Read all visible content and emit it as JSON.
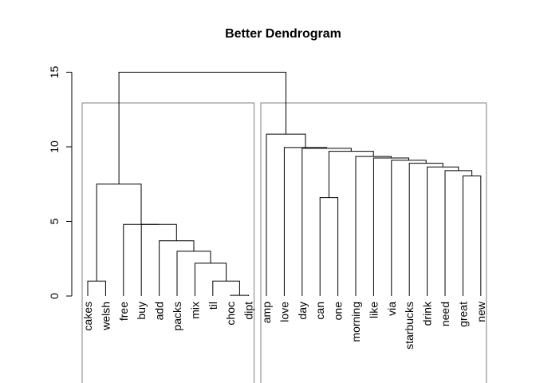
{
  "chart_data": {
    "type": "dendrogram",
    "title": "Better Dendrogram",
    "xlabel": "",
    "ylabel": "",
    "ylim": [
      0,
      15
    ],
    "yticks": [
      0,
      5,
      10,
      15
    ],
    "leaves": [
      "cakes",
      "welsh",
      "free",
      "buy",
      "add",
      "packs",
      "mix",
      "til",
      "choc",
      "dipt",
      "amp",
      "love",
      "day",
      "can",
      "one",
      "morning",
      "like",
      "via",
      "starbucks",
      "drink",
      "need",
      "great",
      "new"
    ],
    "merges": [
      {
        "left": "L:choc",
        "right": "L:dipt",
        "height": 0.05
      },
      {
        "left": "L:cakes",
        "right": "L:welsh",
        "height": 1.0
      },
      {
        "left": "L:til",
        "right": "M:0",
        "height": 1.0
      },
      {
        "left": "L:mix",
        "right": "M:2",
        "height": 2.2
      },
      {
        "left": "L:packs",
        "right": "M:3",
        "height": 3.0
      },
      {
        "left": "L:add",
        "right": "M:4",
        "height": 3.7
      },
      {
        "left": "L:buy",
        "right": "M:5",
        "height": 4.8
      },
      {
        "left": "L:free",
        "right": "M:6",
        "height": 4.8
      },
      {
        "left": "M:1",
        "right": "M:7",
        "height": 7.5
      },
      {
        "left": "L:great",
        "right": "L:new",
        "height": 8.05
      },
      {
        "left": "L:need",
        "right": "M:9",
        "height": 8.4
      },
      {
        "left": "L:drink",
        "right": "M:10",
        "height": 8.65
      },
      {
        "left": "L:starbucks",
        "right": "M:11",
        "height": 8.9
      },
      {
        "left": "L:via",
        "right": "M:12",
        "height": 9.1
      },
      {
        "left": "L:like",
        "right": "M:13",
        "height": 9.25
      },
      {
        "left": "L:morning",
        "right": "M:14",
        "height": 9.35
      },
      {
        "left": "L:can",
        "right": "L:one",
        "height": 6.6
      },
      {
        "left": "M:16",
        "right": "M:15",
        "height": 9.7
      },
      {
        "left": "L:day",
        "right": "M:17",
        "height": 9.9
      },
      {
        "left": "L:love",
        "right": "M:18",
        "height": 9.95
      },
      {
        "left": "L:amp",
        "right": "M:19",
        "height": 10.85
      },
      {
        "left": "M:8",
        "right": "M:20",
        "height": 15.0
      }
    ],
    "cluster_boxes": [
      {
        "first_leaf": "cakes",
        "last_leaf": "dipt"
      },
      {
        "first_leaf": "amp",
        "last_leaf": "new"
      }
    ],
    "grid": false,
    "legend": "none"
  }
}
